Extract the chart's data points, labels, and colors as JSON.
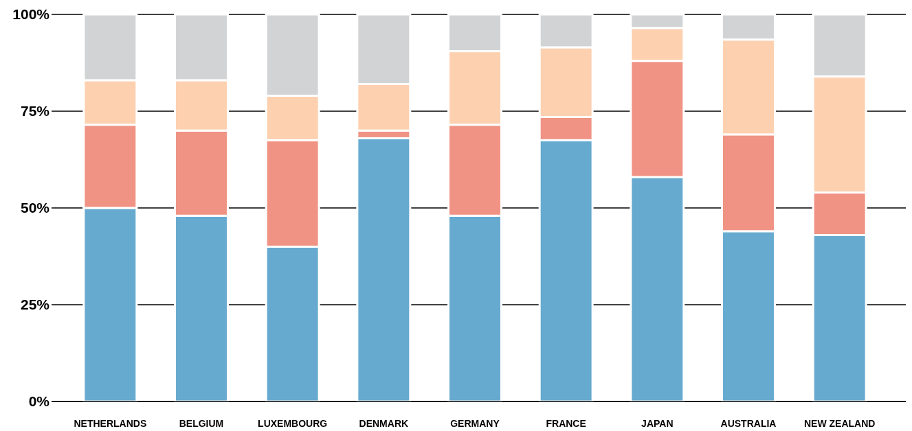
{
  "chart_data": {
    "type": "bar",
    "stacked": true,
    "categories": [
      "NETHERLANDS",
      "BELGIUM",
      "LUXEMBOURG",
      "DENMARK",
      "GERMANY",
      "FRANCE",
      "JAPAN",
      "AUSTRALIA",
      "NEW ZEALAND"
    ],
    "series": [
      {
        "color": "#67aacf",
        "values": [
          50,
          48,
          40,
          68,
          48,
          67.5,
          58,
          44,
          43
        ]
      },
      {
        "color": "#f09384",
        "values": [
          21.5,
          22,
          27.5,
          2,
          23.5,
          6,
          30,
          25,
          11
        ]
      },
      {
        "color": "#fdd0b0",
        "values": [
          11.5,
          13,
          11.5,
          12,
          19,
          18,
          8.5,
          24.5,
          30
        ]
      },
      {
        "color": "#d2d3d5",
        "values": [
          17,
          17,
          21,
          18,
          9.5,
          8.5,
          3.5,
          6.5,
          16
        ]
      }
    ],
    "ylim": [
      0,
      100
    ],
    "yticks": [
      {
        "value": 0,
        "label": "0%"
      },
      {
        "value": 25,
        "label": "25%"
      },
      {
        "value": 50,
        "label": "50%"
      },
      {
        "value": 75,
        "label": "75%"
      },
      {
        "value": 100,
        "label": "100%"
      }
    ],
    "grid": "y"
  }
}
